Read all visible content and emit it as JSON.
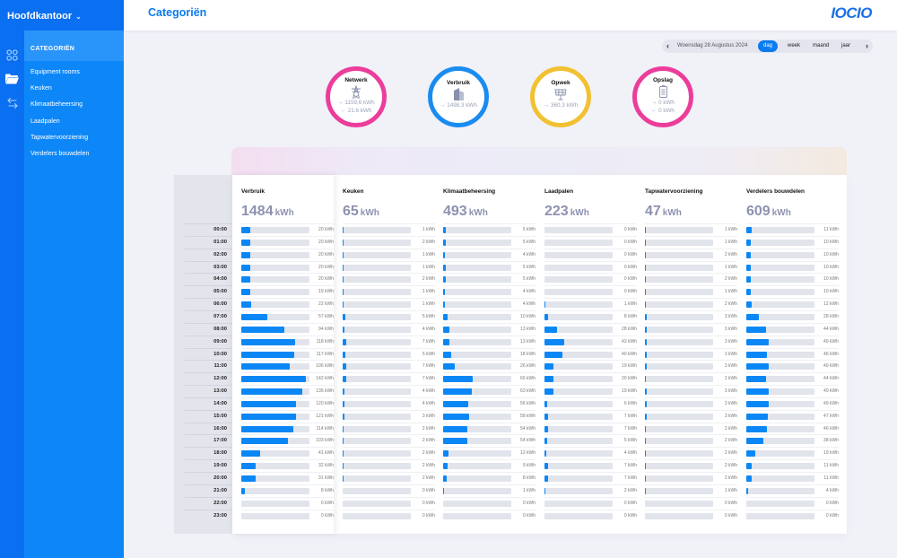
{
  "app": {
    "organization": "Hoofdkantoor",
    "page_title": "Categoriën",
    "logo": "IOCIO"
  },
  "rail_icons": [
    "dashboard-grid-icon",
    "folder-icon",
    "transfer-arrows-icon"
  ],
  "sidebar": {
    "heading": "CATEGORIËN",
    "items": [
      {
        "label": "Equipment rooms"
      },
      {
        "label": "Keuken"
      },
      {
        "label": "Klimaatbeheersing"
      },
      {
        "label": "Laadpalen"
      },
      {
        "label": "Tapwatervoorziening"
      },
      {
        "label": "Verdelers bouwdelen"
      }
    ]
  },
  "date_nav": {
    "date": "Woensdag 28 Augustus 2024",
    "periods": [
      "dag",
      "week",
      "maand",
      "jaar"
    ],
    "active_period": "dag"
  },
  "summary": [
    {
      "title": "Netwerk",
      "icon": "power-pylon-icon",
      "color": "#ec3d9b",
      "lines": [
        "→ 1159,6 kWh",
        "← 21.6 kWh"
      ]
    },
    {
      "title": "Verbruik",
      "icon": "building-icon",
      "color": "#1a8cf0",
      "lines": [
        "→ 1498.3 kWh"
      ]
    },
    {
      "title": "Opwek",
      "icon": "solar-panel-icon",
      "color": "#f1c132",
      "lines": [
        "→ 360.3 kWh"
      ]
    },
    {
      "title": "Opslag",
      "icon": "battery-icon",
      "color": "#ec3d9b",
      "lines": [
        "→ 0 kWh",
        "← 0 kWh"
      ]
    }
  ],
  "hours": [
    "00:00",
    "01:00",
    "02:00",
    "03:00",
    "04:00",
    "05:00",
    "06:00",
    "07:00",
    "08:00",
    "09:00",
    "10:00",
    "11:00",
    "12:00",
    "13:00",
    "14:00",
    "15:00",
    "16:00",
    "17:00",
    "18:00",
    "19:00",
    "20:00",
    "21:00",
    "22:00",
    "23:00"
  ],
  "unit": "kWh",
  "categories": [
    {
      "name": "Verbruik",
      "total": "1484",
      "max": 150,
      "values": [
        20,
        20,
        20,
        20,
        20,
        19,
        22,
        57,
        94,
        118,
        117,
        106,
        142,
        135,
        120,
        121,
        114,
        103,
        41,
        32,
        31,
        8,
        0,
        0
      ]
    },
    {
      "name": "Keuken",
      "total": "65",
      "max": 150,
      "values": [
        1,
        2,
        1,
        1,
        2,
        1,
        1,
        5,
        4,
        7,
        5,
        7,
        7,
        4,
        4,
        3,
        2,
        2,
        2,
        2,
        2,
        0,
        0,
        0
      ]
    },
    {
      "name": "Klimaatbeheersing",
      "total": "493",
      "max": 150,
      "values": [
        5,
        5,
        4,
        5,
        5,
        4,
        4,
        10,
        13,
        13,
        18,
        26,
        66,
        63,
        56,
        58,
        54,
        54,
        12,
        9,
        8,
        1,
        0,
        0
      ]
    },
    {
      "name": "Laadpalen",
      "total": "223",
      "max": 150,
      "values": [
        0,
        0,
        0,
        0,
        0,
        0,
        1,
        8,
        28,
        43,
        40,
        19,
        20,
        19,
        6,
        7,
        7,
        5,
        4,
        7,
        7,
        2,
        0,
        0
      ]
    },
    {
      "name": "Tapwatervoorziening",
      "total": "47",
      "max": 150,
      "values": [
        1,
        1,
        2,
        1,
        2,
        1,
        2,
        3,
        3,
        3,
        3,
        3,
        2,
        3,
        3,
        3,
        2,
        2,
        2,
        2,
        2,
        1,
        0,
        0
      ]
    },
    {
      "name": "Verdelers bouwdelen",
      "total": "609",
      "max": 150,
      "values": [
        11,
        10,
        10,
        10,
        10,
        10,
        12,
        28,
        44,
        49,
        46,
        49,
        44,
        49,
        49,
        47,
        46,
        38,
        19,
        11,
        11,
        4,
        0,
        0
      ]
    }
  ]
}
